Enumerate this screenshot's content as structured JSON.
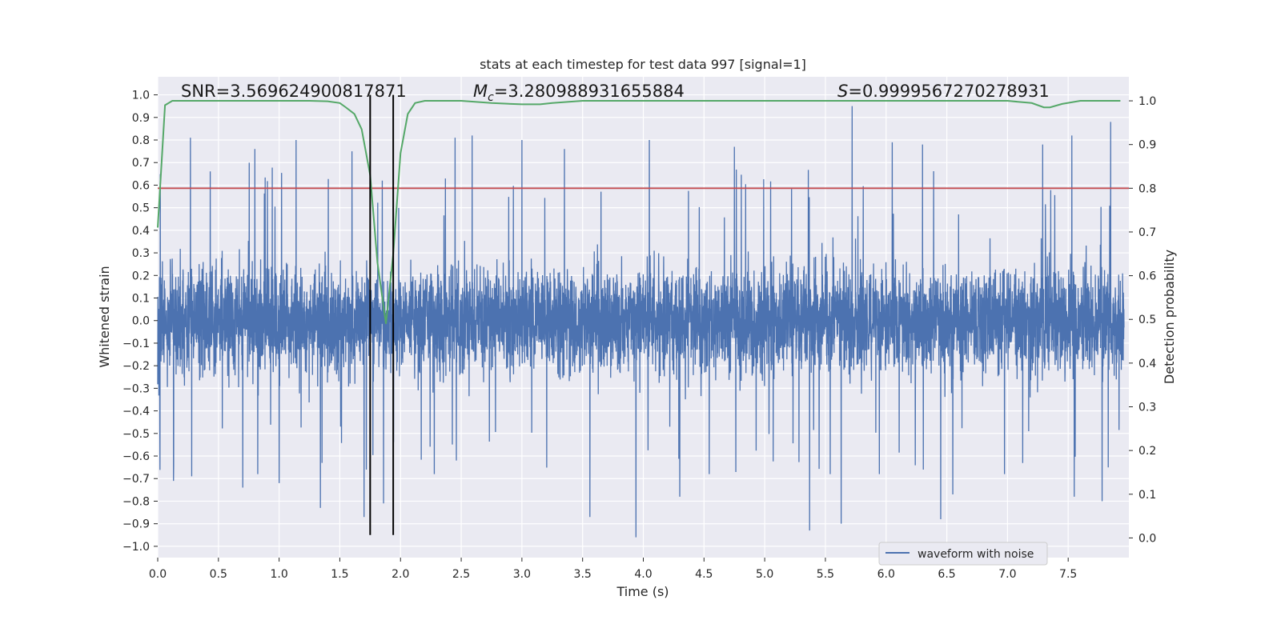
{
  "chart_data": {
    "type": "line",
    "title": "stats at each timestep for test data 997 [signal=1]",
    "xlabel": "Time (s)",
    "ylabel": "Whitened strain",
    "y2label": "Detection probability",
    "xlim": [
      0.0,
      8.0
    ],
    "ylim": [
      -1.05,
      1.08
    ],
    "y2lim": [
      -0.045,
      1.055
    ],
    "xticks": [
      "0.0",
      "0.5",
      "1.0",
      "1.5",
      "2.0",
      "2.5",
      "3.0",
      "3.5",
      "4.0",
      "4.5",
      "5.0",
      "5.5",
      "6.0",
      "6.5",
      "7.0",
      "7.5"
    ],
    "yticks": [
      "1.0",
      "0.9",
      "0.8",
      "0.7",
      "0.6",
      "0.5",
      "0.4",
      "0.3",
      "0.2",
      "0.1",
      "0.0",
      "-0.1",
      "-0.2",
      "-0.3",
      "-0.4",
      "-0.5",
      "-0.6",
      "-0.7",
      "-0.8",
      "-0.9",
      "-1.0"
    ],
    "y2ticks": [
      "1.0",
      "0.9",
      "0.8",
      "0.7",
      "0.6",
      "0.5",
      "0.4",
      "0.3",
      "0.2",
      "0.1",
      "0.0"
    ],
    "grid": true,
    "legend": {
      "position": "lower-right",
      "entries": [
        "waveform with noise"
      ]
    },
    "annotations": {
      "snr": "SNR=3.569624900817871",
      "mc_symbol": "M",
      "mc_sub": "c",
      "mc_value": "=3.280988931655884",
      "s_symbol": "S",
      "s_value": "=0.9999567270278931"
    },
    "threshold": {
      "axis": "y2",
      "value": 0.8
    },
    "vlines": [
      1.75,
      1.94
    ],
    "vline_range": [
      -0.95,
      1.0
    ],
    "series": [
      {
        "name": "waveform with noise",
        "axis": "y",
        "kind": "noise",
        "t_max": 7.96,
        "typical_amplitude": 0.3,
        "peaks_positive": [
          [
            0.27,
            0.81
          ],
          [
            0.8,
            0.76
          ],
          [
            1.14,
            0.8
          ],
          [
            1.6,
            0.75
          ],
          [
            1.7,
            0.78
          ],
          [
            1.85,
            0.62
          ],
          [
            2.45,
            0.81
          ],
          [
            2.59,
            0.82
          ],
          [
            3.0,
            0.8
          ],
          [
            3.35,
            0.76
          ],
          [
            3.56,
            1.0
          ],
          [
            4.05,
            0.8
          ],
          [
            4.75,
            0.77
          ],
          [
            5.63,
            0.94
          ],
          [
            5.72,
            0.95
          ],
          [
            6.05,
            0.79
          ],
          [
            6.3,
            0.78
          ],
          [
            6.55,
            0.92
          ],
          [
            7.29,
            0.78
          ],
          [
            7.53,
            0.82
          ],
          [
            7.85,
            0.88
          ]
        ],
        "peaks_negative": [
          [
            0.13,
            -0.71
          ],
          [
            0.28,
            -0.69
          ],
          [
            0.7,
            -0.74
          ],
          [
            1.0,
            -0.72
          ],
          [
            1.34,
            -0.83
          ],
          [
            1.7,
            -0.87
          ],
          [
            1.86,
            -0.81
          ],
          [
            3.56,
            -0.87
          ],
          [
            3.94,
            -0.96
          ],
          [
            4.3,
            -0.78
          ],
          [
            5.37,
            -0.93
          ],
          [
            5.63,
            -0.9
          ],
          [
            6.45,
            -0.88
          ],
          [
            6.55,
            -0.77
          ],
          [
            7.55,
            -0.78
          ],
          [
            7.78,
            -0.8
          ]
        ]
      },
      {
        "name": "detection probability",
        "axis": "y2",
        "x": [
          0.0,
          0.06,
          0.12,
          0.25,
          0.5,
          0.75,
          1.0,
          1.25,
          1.4,
          1.5,
          1.55,
          1.62,
          1.68,
          1.75,
          1.81,
          1.88,
          1.94,
          2.0,
          2.06,
          2.12,
          2.2,
          2.5,
          2.75,
          3.0,
          3.15,
          3.25,
          3.5,
          4.0,
          5.0,
          6.0,
          7.0,
          7.2,
          7.3,
          7.35,
          7.45,
          7.6,
          7.93
        ],
        "y": [
          0.71,
          0.99,
          1.0,
          1.0,
          1.0,
          1.0,
          1.0,
          1.0,
          0.999,
          0.995,
          0.985,
          0.97,
          0.935,
          0.83,
          0.63,
          0.49,
          0.65,
          0.88,
          0.97,
          0.995,
          1.0,
          1.0,
          0.995,
          0.992,
          0.992,
          0.995,
          1.0,
          1.0,
          1.0,
          1.0,
          1.0,
          0.995,
          0.985,
          0.985,
          0.993,
          1.0,
          1.0
        ]
      }
    ],
    "colors": {
      "noise": "#4c72b0",
      "probability": "#55a868",
      "threshold": "#c44e52",
      "vline": "#000000",
      "background": "#eaeaf2",
      "grid": "#ffffff"
    }
  }
}
